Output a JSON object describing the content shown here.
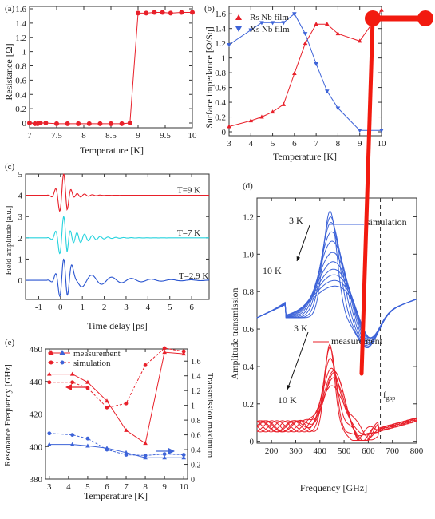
{
  "chart_data": [
    {
      "panel": "(a)",
      "type": "line",
      "xlabel": "Temperature [K]",
      "ylabel": "Resistance [Ω]",
      "xlim": [
        7,
        10
      ],
      "ylim": [
        0,
        1.6
      ],
      "xticks": [
        "7",
        "7.5",
        "8",
        "8.5",
        "9",
        "9.5",
        "10"
      ],
      "yticks": [
        "0",
        "0.2",
        "0.4",
        "0.6",
        "0.8",
        "1",
        "1.2",
        "1.4",
        "1.6"
      ],
      "series": [
        {
          "color": "#e8202a",
          "x": [
            7.0,
            7.1,
            7.15,
            7.2,
            7.3,
            7.5,
            7.7,
            7.9,
            8.1,
            8.3,
            8.5,
            8.7,
            8.85,
            9.0,
            9.15,
            9.3,
            9.45,
            9.6,
            9.8,
            10.0
          ],
          "y": [
            0.0,
            -0.01,
            -0.01,
            0.0,
            0.0,
            -0.01,
            -0.01,
            -0.01,
            -0.01,
            -0.01,
            -0.01,
            -0.01,
            0.0,
            1.54,
            1.54,
            1.55,
            1.55,
            1.54,
            1.55,
            1.55
          ]
        }
      ]
    },
    {
      "panel": "(b)",
      "type": "line",
      "xlabel": "Temperature [K]",
      "ylabel": "Surface impedance [Ω/Sq]",
      "xlim": [
        3,
        10
      ],
      "ylim": [
        0,
        1.7
      ],
      "xticks": [
        "3",
        "4",
        "5",
        "6",
        "7",
        "8",
        "9",
        "10"
      ],
      "yticks": [
        "0",
        "0.2",
        "0.4",
        "0.6",
        "0.8",
        "1",
        "1.2",
        "1.4",
        "1.6"
      ],
      "legend_position": "top-left",
      "series": [
        {
          "name": "Rs Nb film",
          "color": "#e8202a",
          "marker": "triangle-up",
          "x": [
            3.0,
            4.0,
            4.5,
            5.0,
            5.5,
            6.0,
            6.5,
            7.0,
            7.5,
            8.0,
            9.0,
            10.0
          ],
          "y": [
            0.07,
            0.15,
            0.2,
            0.27,
            0.37,
            0.79,
            1.2,
            1.46,
            1.46,
            1.33,
            1.23,
            1.65
          ]
        },
        {
          "name": "Xs Nb film",
          "color": "#3d63d8",
          "marker": "triangle-down",
          "x": [
            3.0,
            4.0,
            4.5,
            5.0,
            5.5,
            6.0,
            6.5,
            7.0,
            7.5,
            8.0,
            9.0,
            10.0
          ],
          "y": [
            1.18,
            1.38,
            1.48,
            1.48,
            1.48,
            1.6,
            1.33,
            0.92,
            0.55,
            0.32,
            0.02,
            0.02
          ]
        }
      ]
    },
    {
      "panel": "(c)",
      "type": "line",
      "xlabel": "Time delay [ps]",
      "ylabel": "Field amplitude [a.u.]",
      "xlim": [
        -1.6,
        6.8
      ],
      "ylim": [
        -0.9,
        5
      ],
      "xticks": [
        "-1",
        "0",
        "1",
        "2",
        "3",
        "4",
        "5",
        "6"
      ],
      "yticks": [
        "0",
        "1",
        "2",
        "3",
        "4",
        "5"
      ],
      "traces": [
        {
          "label": "T=9 K",
          "color": "#e8202a",
          "offset": 4
        },
        {
          "label": "T=7 K",
          "color": "#27d3de",
          "offset": 2
        },
        {
          "label": "T=2.9 K",
          "color": "#2a55d0",
          "offset": 0
        }
      ]
    },
    {
      "panel": "(d)",
      "type": "line",
      "xlabel": "Frequency [GHz]",
      "ylabel": "Amplitude transmission",
      "xlim": [
        140,
        800
      ],
      "ylim": [
        -0.01,
        1.3
      ],
      "xticks": [
        "200",
        "300",
        "400",
        "500",
        "600",
        "700",
        "800"
      ],
      "yticks": [
        "0",
        "0.2",
        "0.4",
        "0.6",
        "0.8",
        "1.0",
        "1.2"
      ],
      "fgap_label": "f",
      "fgap_sub": "gap",
      "fgap_x": 650,
      "annotations": {
        "sim_top": "3 K",
        "sim_bottom": "10 K",
        "sim_label": "simulation",
        "meas_top": "3 K",
        "meas_bottom": "10 K",
        "meas_label": "measurement"
      },
      "simulation": {
        "color": "#3d63d8",
        "peaks": [
          1.23,
          1.2,
          1.17,
          1.12,
          1.07,
          1.01,
          0.96,
          0.92,
          0.89,
          0.86,
          0.83
        ]
      },
      "measurement": {
        "color": "#e8202a",
        "peaks": [
          0.49,
          0.48,
          0.45,
          0.42,
          0.39,
          0.35,
          0.31,
          0.28
        ]
      }
    },
    {
      "panel": "(e)",
      "type": "line",
      "xlabel": "Temperature [K]",
      "ylabel_left": "Resonance Frequency [GHz]",
      "ylabel_right": "Transmission maximum",
      "xlim": [
        2.8,
        10.2
      ],
      "ylim_left": [
        380,
        460
      ],
      "ylim_right": [
        0,
        1.7
      ],
      "xticks": [
        "3",
        "4",
        "5",
        "6",
        "7",
        "8",
        "9",
        "10"
      ],
      "yticks_left": [
        "380",
        "400",
        "420",
        "440",
        "460"
      ],
      "yticks_right": [
        "0",
        "0.2",
        "0.4",
        "0.6",
        "0.8",
        "1",
        "1.2",
        "1.4",
        "1.6"
      ],
      "legend_position": "top-left",
      "series": [
        {
          "name": "measurement",
          "axis": "left",
          "color": "#e8202a",
          "marker": "triangle-up",
          "dash": "solid",
          "x": [
            3,
            4.2,
            5,
            6,
            7,
            8,
            9,
            10
          ],
          "y": [
            444.5,
            444.5,
            439.5,
            428,
            410,
            402,
            458,
            457
          ]
        },
        {
          "name": "simulation",
          "axis": "left",
          "color": "#e8202a",
          "marker": "circle",
          "dash": "dashed",
          "x": [
            3,
            4.2,
            5,
            6,
            7,
            8,
            9,
            10
          ],
          "y": [
            439.5,
            439.5,
            436,
            424,
            426.5,
            450,
            460.5,
            458.5
          ]
        },
        {
          "axis": "right",
          "color": "#3d63d8",
          "marker": "triangle-up",
          "dash": "solid",
          "x": [
            3,
            4.2,
            5,
            6,
            7,
            8,
            9,
            10
          ],
          "y": [
            0.47,
            0.47,
            0.45,
            0.42,
            0.36,
            0.29,
            0.29,
            0.29
          ]
        },
        {
          "axis": "right",
          "color": "#3d63d8",
          "marker": "circle",
          "dash": "dashed",
          "x": [
            3,
            4.2,
            5,
            6,
            7,
            8,
            9,
            10
          ],
          "y": [
            0.62,
            0.6,
            0.55,
            0.4,
            0.33,
            0.32,
            0.34,
            0.33
          ]
        }
      ]
    }
  ],
  "overlay": {
    "color": "#f21a0f",
    "points": [
      [
        5.5,
        0.625
      ],
      [
        6.3,
        0.625
      ],
      [
        7.1,
        0.27
      ],
      [
        7.6,
        0.58
      ],
      [
        7.2,
        0.35
      ]
    ]
  }
}
